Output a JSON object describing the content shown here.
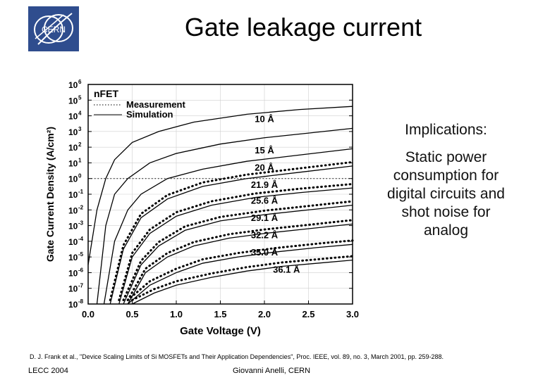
{
  "slide": {
    "title": "Gate leakage current",
    "implications_heading": "Implications:",
    "implications_text": "Static power consumption for digital circuits and shot noise for analog",
    "citation": "D. J. Frank et al., \"Device Scaling Limits of Si MOSFETs and Their Application Dependencies\", Proc. IEEE, vol. 89, no. 3, March 2001, pp. 259-288.",
    "footer_left": "LECC 2004",
    "footer_center": "Giovanni Anelli, CERN",
    "logo_text": "CERN"
  },
  "colors": {
    "logo_bg": "#2f4d8e",
    "curve": "#000000",
    "dotted": "#000000"
  },
  "chart_data": {
    "type": "line",
    "xlabel": "Gate Voltage (V)",
    "ylabel": "Gate Current Density (A/cm²)",
    "xlim": [
      0.0,
      3.0
    ],
    "ylim_log10": [
      -8,
      6
    ],
    "y_log": true,
    "xticks": [
      "0.0",
      "0.5",
      "1.0",
      "1.5",
      "2.0",
      "2.5",
      "3.0"
    ],
    "ytick_exponents": [
      6,
      5,
      4,
      3,
      2,
      1,
      0,
      -1,
      -2,
      -3,
      -4,
      -5,
      -6,
      -7,
      -8
    ],
    "grid": true,
    "annotation": "nFET",
    "legend": {
      "placement": "top-left",
      "entries": [
        {
          "label": "Measurement",
          "style": "dotted"
        },
        {
          "label": "Simulation",
          "style": "solid"
        }
      ]
    },
    "reference_line": {
      "y_log10": 0,
      "style": "dotted"
    },
    "series": [
      {
        "name": "10 Å",
        "x": [
          0.0,
          0.1,
          0.2,
          0.3,
          0.5,
          0.8,
          1.2,
          1.8,
          2.4,
          3.0
        ],
        "y_log10": [
          -5.5,
          -2.0,
          0.0,
          1.2,
          2.3,
          3.0,
          3.6,
          4.1,
          4.4,
          4.6
        ],
        "measured": false
      },
      {
        "name": "15 Å",
        "x": [
          0.1,
          0.2,
          0.3,
          0.45,
          0.7,
          1.0,
          1.5,
          2.0,
          2.5,
          3.0
        ],
        "y_log10": [
          -8.0,
          -3.0,
          -1.0,
          0.0,
          1.0,
          1.6,
          2.2,
          2.6,
          2.9,
          3.2
        ],
        "measured": false
      },
      {
        "name": "20 Å",
        "x": [
          0.18,
          0.3,
          0.45,
          0.6,
          0.9,
          1.3,
          1.8,
          2.4,
          3.0
        ],
        "y_log10": [
          -8.0,
          -4.0,
          -2.0,
          -1.0,
          0.0,
          0.6,
          1.1,
          1.5,
          1.9
        ],
        "measured": false
      },
      {
        "name": "21.9 Å",
        "x": [
          0.25,
          0.4,
          0.6,
          0.9,
          1.3,
          1.8,
          2.4,
          3.0
        ],
        "y_log10": [
          -8.0,
          -4.5,
          -2.5,
          -1.3,
          -0.5,
          0.0,
          0.4,
          0.8
        ],
        "measured": true
      },
      {
        "name": "25.6 Å",
        "x": [
          0.35,
          0.5,
          0.7,
          1.0,
          1.4,
          1.9,
          2.4,
          3.0
        ],
        "y_log10": [
          -8.0,
          -5.0,
          -3.5,
          -2.4,
          -1.7,
          -1.2,
          -0.9,
          -0.6
        ],
        "measured": true
      },
      {
        "name": "29.1 Å",
        "x": [
          0.4,
          0.6,
          0.8,
          1.1,
          1.5,
          2.0,
          2.5,
          3.0
        ],
        "y_log10": [
          -8.0,
          -5.5,
          -4.3,
          -3.3,
          -2.7,
          -2.3,
          -2.0,
          -1.7
        ],
        "measured": true
      },
      {
        "name": "32.2 Å",
        "x": [
          0.45,
          0.65,
          0.9,
          1.2,
          1.6,
          2.0,
          2.5,
          3.0
        ],
        "y_log10": [
          -8.0,
          -6.0,
          -5.0,
          -4.3,
          -3.8,
          -3.5,
          -3.2,
          -2.9
        ],
        "measured": true
      },
      {
        "name": "35.0 Å",
        "x": [
          0.45,
          0.7,
          1.0,
          1.3,
          1.7,
          2.1,
          2.6,
          3.0
        ],
        "y_log10": [
          -8.0,
          -6.8,
          -6.0,
          -5.4,
          -5.0,
          -4.7,
          -4.4,
          -4.2
        ],
        "measured": true
      },
      {
        "name": "36.1 Å",
        "x": [
          0.5,
          0.75,
          1.0,
          1.4,
          1.8,
          2.2,
          2.6,
          3.0
        ],
        "y_log10": [
          -8.0,
          -7.3,
          -6.8,
          -6.3,
          -5.9,
          -5.6,
          -5.4,
          -5.2
        ],
        "measured": true
      }
    ]
  }
}
